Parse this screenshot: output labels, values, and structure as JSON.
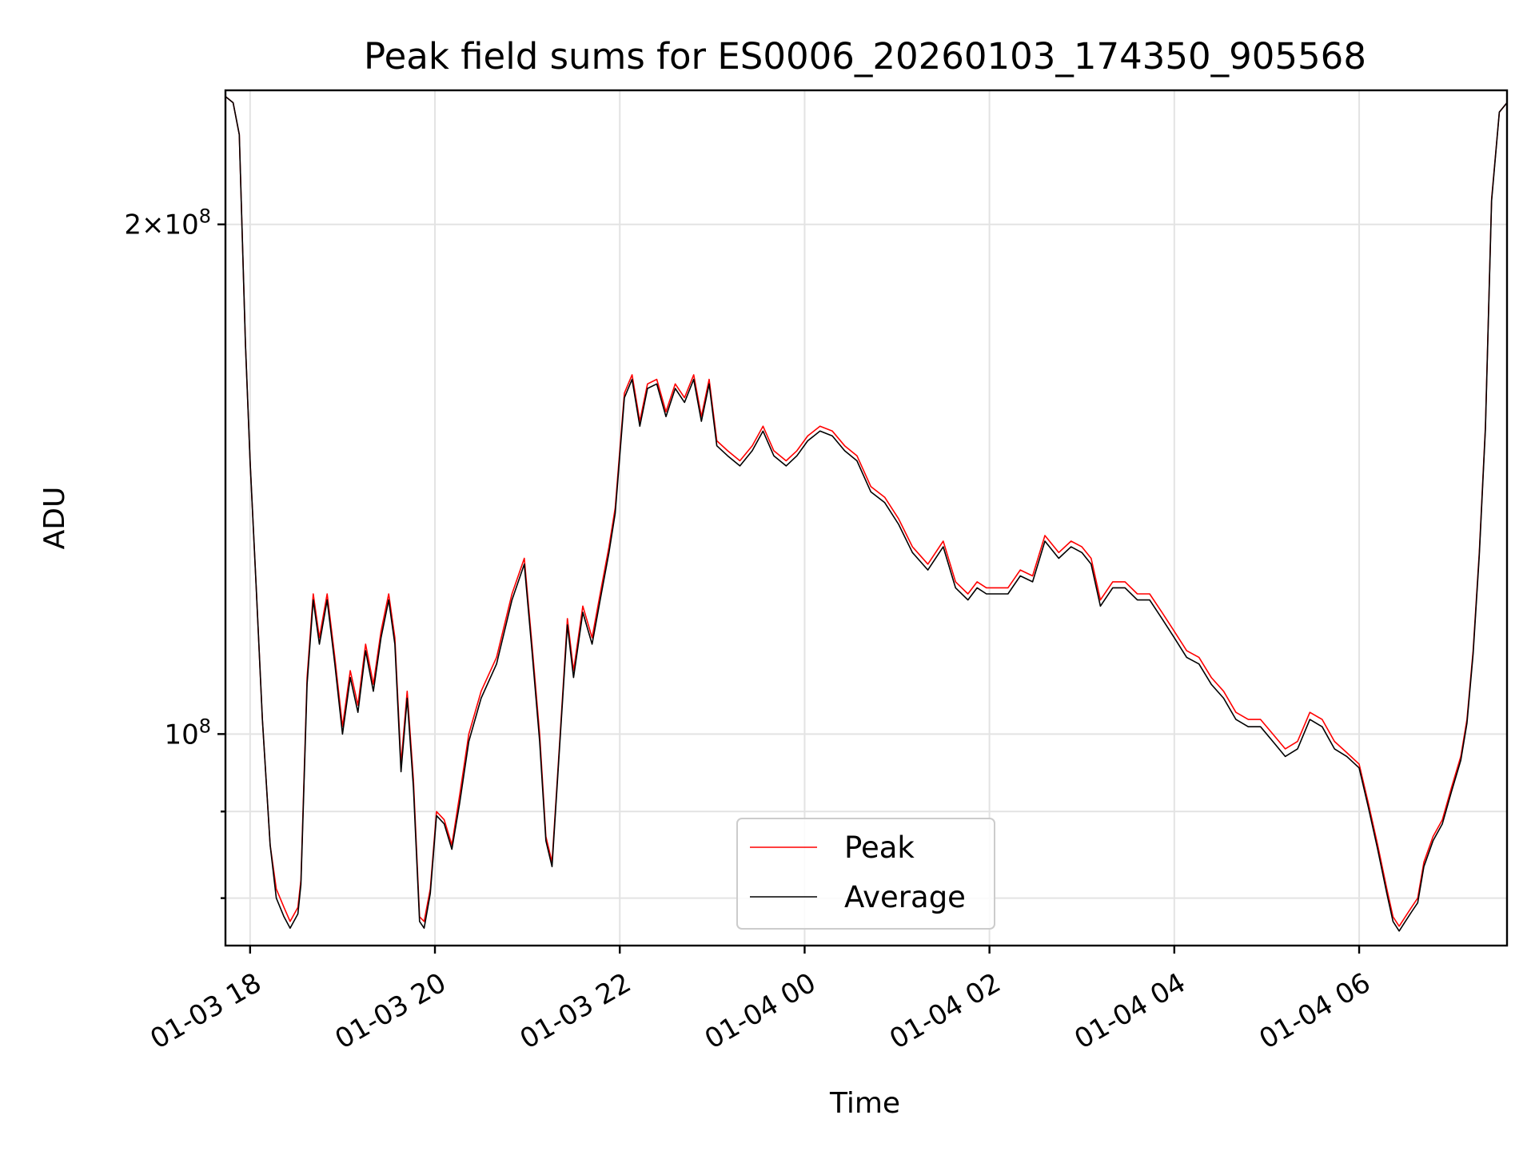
{
  "chart_data": {
    "type": "line",
    "title": "Peak field sums for ES0006_20260103_174350_905568",
    "xlabel": "Time",
    "ylabel": "ADU",
    "x_unit": "hours",
    "xlim": [
      "2026-01-03 17:44",
      "2026-01-04 07:36"
    ],
    "ylim": [
      75000000,
      240000000
    ],
    "yscale": "log",
    "grid": true,
    "legend_position": "lower center",
    "x_ticks": [
      {
        "value": "2026-01-03 18:00",
        "label": "01-03 18"
      },
      {
        "value": "2026-01-03 20:00",
        "label": "01-03 20"
      },
      {
        "value": "2026-01-03 22:00",
        "label": "01-03 22"
      },
      {
        "value": "2026-01-04 00:00",
        "label": "01-04 00"
      },
      {
        "value": "2026-01-04 02:00",
        "label": "01-04 02"
      },
      {
        "value": "2026-01-04 04:00",
        "label": "01-04 04"
      },
      {
        "value": "2026-01-04 06:00",
        "label": "01-04 06"
      }
    ],
    "y_major_ticks": [
      {
        "value": 100000000,
        "base": "10",
        "exp": "8"
      },
      {
        "value": 200000000,
        "mant": "2",
        "base": "10",
        "exp": "8"
      }
    ],
    "y_minor_ticks": [
      80000000,
      90000000
    ],
    "series": [
      {
        "name": "Peak",
        "color": "#ff0000",
        "x": [
          "2026-01-03 17:44",
          "2026-01-03 17:49",
          "2026-01-03 17:53",
          "2026-01-03 17:57",
          "2026-01-03 18:00",
          "2026-01-03 18:04",
          "2026-01-03 18:08",
          "2026-01-03 18:13",
          "2026-01-03 18:17",
          "2026-01-03 18:22",
          "2026-01-03 18:26",
          "2026-01-03 18:31",
          "2026-01-03 18:33",
          "2026-01-03 18:37",
          "2026-01-03 18:41",
          "2026-01-03 18:45",
          "2026-01-03 18:50",
          "2026-01-03 18:55",
          "2026-01-03 19:00",
          "2026-01-03 19:05",
          "2026-01-03 19:10",
          "2026-01-03 19:15",
          "2026-01-03 19:20",
          "2026-01-03 19:25",
          "2026-01-03 19:30",
          "2026-01-03 19:34",
          "2026-01-03 19:38",
          "2026-01-03 19:42",
          "2026-01-03 19:46",
          "2026-01-03 19:50",
          "2026-01-03 19:53",
          "2026-01-03 19:57",
          "2026-01-03 20:01",
          "2026-01-03 20:06",
          "2026-01-03 20:11",
          "2026-01-03 20:16",
          "2026-01-03 20:22",
          "2026-01-03 20:30",
          "2026-01-03 20:40",
          "2026-01-03 20:50",
          "2026-01-03 20:58",
          "2026-01-03 21:03",
          "2026-01-03 21:08",
          "2026-01-03 21:12",
          "2026-01-03 21:16",
          "2026-01-03 21:21",
          "2026-01-03 21:26",
          "2026-01-03 21:30",
          "2026-01-03 21:36",
          "2026-01-03 21:42",
          "2026-01-03 21:48",
          "2026-01-03 21:53",
          "2026-01-03 21:57",
          "2026-01-03 22:03",
          "2026-01-03 22:08",
          "2026-01-03 22:13",
          "2026-01-03 22:18",
          "2026-01-03 22:24",
          "2026-01-03 22:30",
          "2026-01-03 22:36",
          "2026-01-03 22:42",
          "2026-01-03 22:48",
          "2026-01-03 22:53",
          "2026-01-03 22:58",
          "2026-01-03 23:03",
          "2026-01-03 23:10",
          "2026-01-03 23:18",
          "2026-01-03 23:26",
          "2026-01-03 23:33",
          "2026-01-03 23:40",
          "2026-01-03 23:48",
          "2026-01-03 23:55",
          "2026-01-04 00:02",
          "2026-01-04 00:10",
          "2026-01-04 00:18",
          "2026-01-04 00:26",
          "2026-01-04 00:34",
          "2026-01-04 00:43",
          "2026-01-04 00:52",
          "2026-01-04 01:01",
          "2026-01-04 01:10",
          "2026-01-04 01:20",
          "2026-01-04 01:30",
          "2026-01-04 01:38",
          "2026-01-04 01:46",
          "2026-01-04 01:52",
          "2026-01-04 01:58",
          "2026-01-04 02:05",
          "2026-01-04 02:12",
          "2026-01-04 02:20",
          "2026-01-04 02:28",
          "2026-01-04 02:36",
          "2026-01-04 02:45",
          "2026-01-04 02:53",
          "2026-01-04 03:00",
          "2026-01-04 03:06",
          "2026-01-04 03:12",
          "2026-01-04 03:20",
          "2026-01-04 03:28",
          "2026-01-04 03:36",
          "2026-01-04 03:44",
          "2026-01-04 03:52",
          "2026-01-04 04:00",
          "2026-01-04 04:08",
          "2026-01-04 04:16",
          "2026-01-04 04:24",
          "2026-01-04 04:32",
          "2026-01-04 04:40",
          "2026-01-04 04:48",
          "2026-01-04 04:56",
          "2026-01-04 05:04",
          "2026-01-04 05:12",
          "2026-01-04 05:20",
          "2026-01-04 05:28",
          "2026-01-04 05:36",
          "2026-01-04 05:44",
          "2026-01-04 05:52",
          "2026-01-04 06:00",
          "2026-01-04 06:06",
          "2026-01-04 06:12",
          "2026-01-04 06:18",
          "2026-01-04 06:22",
          "2026-01-04 06:26",
          "2026-01-04 06:30",
          "2026-01-04 06:34",
          "2026-01-04 06:38",
          "2026-01-04 06:42",
          "2026-01-04 06:48",
          "2026-01-04 06:54",
          "2026-01-04 07:00",
          "2026-01-04 07:06",
          "2026-01-04 07:10",
          "2026-01-04 07:14",
          "2026-01-04 07:18",
          "2026-01-04 07:22",
          "2026-01-04 07:26",
          "2026-01-04 07:31",
          "2026-01-04 07:36"
        ],
        "values": [
          238000000,
          236000000,
          226000000,
          170000000,
          145000000,
          122000000,
          102000000,
          86000000,
          81000000,
          79000000,
          77500000,
          79000000,
          82000000,
          108000000,
          121000000,
          114000000,
          121000000,
          111000000,
          101000000,
          109000000,
          104000000,
          113000000,
          107000000,
          115000000,
          121000000,
          114000000,
          96000000,
          106000000,
          94000000,
          78000000,
          77500000,
          81000000,
          90000000,
          89000000,
          86000000,
          92000000,
          100000000,
          106000000,
          111000000,
          121000000,
          127000000,
          113000000,
          100000000,
          87000000,
          84000000,
          99000000,
          117000000,
          109000000,
          119000000,
          114000000,
          122000000,
          129000000,
          136000000,
          159000000,
          163000000,
          153000000,
          161000000,
          162000000,
          155000000,
          161000000,
          158000000,
          163000000,
          154000000,
          162000000,
          149000000,
          147000000,
          145000000,
          148000000,
          152000000,
          147000000,
          145000000,
          147000000,
          150000000,
          152000000,
          151000000,
          148000000,
          146000000,
          140000000,
          138000000,
          134000000,
          129000000,
          126000000,
          130000000,
          123000000,
          121000000,
          123000000,
          122000000,
          122000000,
          122000000,
          125000000,
          124000000,
          131000000,
          128000000,
          130000000,
          129000000,
          127000000,
          120000000,
          123000000,
          123000000,
          121000000,
          121000000,
          118000000,
          115000000,
          112000000,
          111000000,
          108000000,
          106000000,
          103000000,
          102000000,
          102000000,
          100000000,
          98000000,
          99000000,
          103000000,
          102000000,
          99000000,
          97500000,
          96000000,
          91000000,
          86000000,
          81000000,
          78000000,
          77000000,
          78000000,
          79000000,
          80000000,
          84000000,
          87000000,
          89000000,
          93000000,
          97000000,
          102000000,
          112000000,
          128000000,
          152000000,
          207000000,
          233000000,
          236000000
        ]
      },
      {
        "name": "Average",
        "color": "#000000",
        "x": [
          "2026-01-03 17:44",
          "2026-01-03 17:49",
          "2026-01-03 17:53",
          "2026-01-03 17:57",
          "2026-01-03 18:00",
          "2026-01-03 18:04",
          "2026-01-03 18:08",
          "2026-01-03 18:13",
          "2026-01-03 18:17",
          "2026-01-03 18:22",
          "2026-01-03 18:26",
          "2026-01-03 18:31",
          "2026-01-03 18:33",
          "2026-01-03 18:37",
          "2026-01-03 18:41",
          "2026-01-03 18:45",
          "2026-01-03 18:50",
          "2026-01-03 18:55",
          "2026-01-03 19:00",
          "2026-01-03 19:05",
          "2026-01-03 19:10",
          "2026-01-03 19:15",
          "2026-01-03 19:20",
          "2026-01-03 19:25",
          "2026-01-03 19:30",
          "2026-01-03 19:34",
          "2026-01-03 19:38",
          "2026-01-03 19:42",
          "2026-01-03 19:46",
          "2026-01-03 19:50",
          "2026-01-03 19:53",
          "2026-01-03 19:57",
          "2026-01-03 20:01",
          "2026-01-03 20:06",
          "2026-01-03 20:11",
          "2026-01-03 20:16",
          "2026-01-03 20:22",
          "2026-01-03 20:30",
          "2026-01-03 20:40",
          "2026-01-03 20:50",
          "2026-01-03 20:58",
          "2026-01-03 21:03",
          "2026-01-03 21:08",
          "2026-01-03 21:12",
          "2026-01-03 21:16",
          "2026-01-03 21:21",
          "2026-01-03 21:26",
          "2026-01-03 21:30",
          "2026-01-03 21:36",
          "2026-01-03 21:42",
          "2026-01-03 21:48",
          "2026-01-03 21:53",
          "2026-01-03 21:57",
          "2026-01-03 22:03",
          "2026-01-03 22:08",
          "2026-01-03 22:13",
          "2026-01-03 22:18",
          "2026-01-03 22:24",
          "2026-01-03 22:30",
          "2026-01-03 22:36",
          "2026-01-03 22:42",
          "2026-01-03 22:48",
          "2026-01-03 22:53",
          "2026-01-03 22:58",
          "2026-01-03 23:03",
          "2026-01-03 23:10",
          "2026-01-03 23:18",
          "2026-01-03 23:26",
          "2026-01-03 23:33",
          "2026-01-03 23:40",
          "2026-01-03 23:48",
          "2026-01-03 23:55",
          "2026-01-04 00:02",
          "2026-01-04 00:10",
          "2026-01-04 00:18",
          "2026-01-04 00:26",
          "2026-01-04 00:34",
          "2026-01-04 00:43",
          "2026-01-04 00:52",
          "2026-01-04 01:01",
          "2026-01-04 01:10",
          "2026-01-04 01:20",
          "2026-01-04 01:30",
          "2026-01-04 01:38",
          "2026-01-04 01:46",
          "2026-01-04 01:52",
          "2026-01-04 01:58",
          "2026-01-04 02:05",
          "2026-01-04 02:12",
          "2026-01-04 02:20",
          "2026-01-04 02:28",
          "2026-01-04 02:36",
          "2026-01-04 02:45",
          "2026-01-04 02:53",
          "2026-01-04 03:00",
          "2026-01-04 03:06",
          "2026-01-04 03:12",
          "2026-01-04 03:20",
          "2026-01-04 03:28",
          "2026-01-04 03:36",
          "2026-01-04 03:44",
          "2026-01-04 03:52",
          "2026-01-04 04:00",
          "2026-01-04 04:08",
          "2026-01-04 04:16",
          "2026-01-04 04:24",
          "2026-01-04 04:32",
          "2026-01-04 04:40",
          "2026-01-04 04:48",
          "2026-01-04 04:56",
          "2026-01-04 05:04",
          "2026-01-04 05:12",
          "2026-01-04 05:20",
          "2026-01-04 05:28",
          "2026-01-04 05:36",
          "2026-01-04 05:44",
          "2026-01-04 05:52",
          "2026-01-04 06:00",
          "2026-01-04 06:06",
          "2026-01-04 06:12",
          "2026-01-04 06:18",
          "2026-01-04 06:22",
          "2026-01-04 06:26",
          "2026-01-04 06:30",
          "2026-01-04 06:34",
          "2026-01-04 06:38",
          "2026-01-04 06:42",
          "2026-01-04 06:48",
          "2026-01-04 06:54",
          "2026-01-04 07:00",
          "2026-01-04 07:06",
          "2026-01-04 07:10",
          "2026-01-04 07:14",
          "2026-01-04 07:18",
          "2026-01-04 07:22",
          "2026-01-04 07:26",
          "2026-01-04 07:31",
          "2026-01-04 07:36"
        ],
        "values": [
          238000000,
          236000000,
          226000000,
          170000000,
          145000000,
          122000000,
          102000000,
          86000000,
          80000000,
          78000000,
          76800000,
          78300000,
          81500000,
          107000000,
          120000000,
          113000000,
          120000000,
          110000000,
          100000000,
          108000000,
          103000000,
          112000000,
          106000000,
          114000000,
          120000000,
          113000000,
          95000000,
          105000000,
          93000000,
          77500000,
          76800000,
          80500000,
          89500000,
          88500000,
          85500000,
          91000000,
          99000000,
          105000000,
          110000000,
          120000000,
          126000000,
          112000000,
          99000000,
          86500000,
          83500000,
          98500000,
          116000000,
          108000000,
          118000000,
          113000000,
          121000000,
          128000000,
          135000000,
          158000000,
          162000000,
          152000000,
          160000000,
          161000000,
          154000000,
          160000000,
          157000000,
          162000000,
          153000000,
          161000000,
          148000000,
          146000000,
          144000000,
          147000000,
          151000000,
          146000000,
          144000000,
          146000000,
          149000000,
          151000000,
          150000000,
          147000000,
          145000000,
          139000000,
          137000000,
          133000000,
          128000000,
          125000000,
          129000000,
          122000000,
          120000000,
          122000000,
          121000000,
          121000000,
          121000000,
          124000000,
          123000000,
          130000000,
          127000000,
          129000000,
          128000000,
          126000000,
          119000000,
          122000000,
          122000000,
          120000000,
          120000000,
          117000000,
          114000000,
          111000000,
          110000000,
          107000000,
          105000000,
          102000000,
          101000000,
          101000000,
          99000000,
          97000000,
          98000000,
          102000000,
          101000000,
          98000000,
          97000000,
          95500000,
          90500000,
          85500000,
          80500000,
          77500000,
          76500000,
          77500000,
          78500000,
          79500000,
          83500000,
          86500000,
          88500000,
          92500000,
          96500000,
          101500000,
          111500000,
          127500000,
          151500000,
          206500000,
          233000000,
          236000000
        ]
      }
    ]
  }
}
